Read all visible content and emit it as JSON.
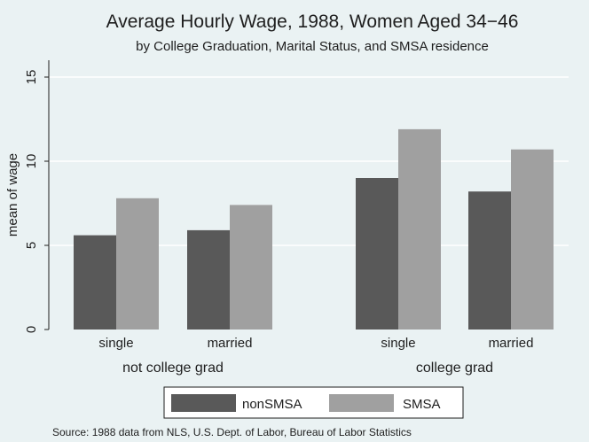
{
  "chart_data": {
    "type": "bar",
    "title": "Average Hourly Wage, 1988, Women Aged 34−46",
    "subtitle": "by College Graduation, Marital Status, and SMSA residence",
    "ylabel": "mean of wage",
    "xlabel": "",
    "ylim": [
      0,
      16
    ],
    "yticks": [
      0,
      5,
      10,
      15
    ],
    "grid": true,
    "legend_position": "bottom",
    "groups": [
      {
        "label": "not college grad",
        "categories": [
          "single",
          "married"
        ]
      },
      {
        "label": "college grad",
        "categories": [
          "single",
          "married"
        ]
      }
    ],
    "series": [
      {
        "name": "nonSMSA",
        "color": "#595959",
        "values": [
          [
            5.6,
            5.9
          ],
          [
            9.0,
            8.2
          ]
        ]
      },
      {
        "name": "SMSA",
        "color": "#a0a0a0",
        "values": [
          [
            7.8,
            7.4
          ],
          [
            11.9,
            10.7
          ]
        ]
      }
    ],
    "note": "Source:  1988 data from NLS, U.S. Dept. of Labor, Bureau of Labor Statistics"
  }
}
